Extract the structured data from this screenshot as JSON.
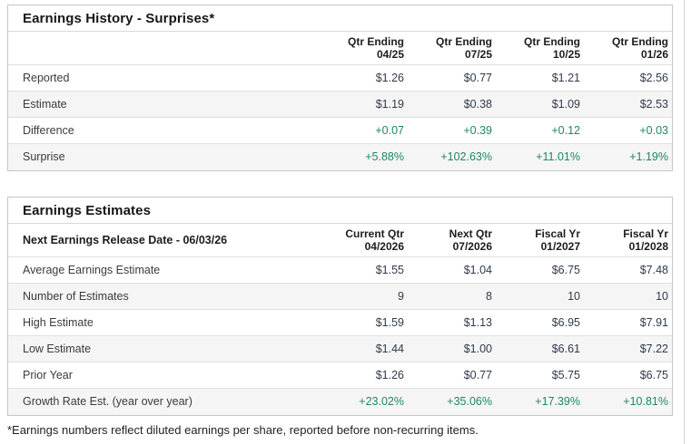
{
  "colors": {
    "positive_value_color": "#1d8767"
  },
  "surprises": {
    "title": "Earnings History - Surprises*",
    "columns": [
      {
        "line1": "Qtr Ending",
        "line2": "04/25"
      },
      {
        "line1": "Qtr Ending",
        "line2": "07/25"
      },
      {
        "line1": "Qtr Ending",
        "line2": "10/25"
      },
      {
        "line1": "Qtr Ending",
        "line2": "01/26"
      }
    ],
    "rows": [
      {
        "label": "Reported",
        "values": [
          "$1.26",
          "$0.77",
          "$1.21",
          "$2.56"
        ]
      },
      {
        "label": "Estimate",
        "values": [
          "$1.19",
          "$0.38",
          "$1.09",
          "$2.53"
        ]
      },
      {
        "label": "Difference",
        "values": [
          "+0.07",
          "+0.39",
          "+0.12",
          "+0.03"
        ]
      },
      {
        "label": "Surprise",
        "values": [
          "+5.88%",
          "+102.63%",
          "+11.01%",
          "+1.19%"
        ]
      }
    ]
  },
  "estimates": {
    "title": "Earnings Estimates",
    "corner_label": "Next Earnings Release Date - 06/03/26",
    "columns": [
      {
        "line1": "Current Qtr",
        "line2": "04/2026"
      },
      {
        "line1": "Next Qtr",
        "line2": "07/2026"
      },
      {
        "line1": "Fiscal Yr",
        "line2": "01/2027"
      },
      {
        "line1": "Fiscal Yr",
        "line2": "01/2028"
      }
    ],
    "rows": [
      {
        "label": "Average Earnings Estimate",
        "values": [
          "$1.55",
          "$1.04",
          "$6.75",
          "$7.48"
        ]
      },
      {
        "label": "Number of Estimates",
        "values": [
          "9",
          "8",
          "10",
          "10"
        ]
      },
      {
        "label": "High Estimate",
        "values": [
          "$1.59",
          "$1.13",
          "$6.95",
          "$7.91"
        ]
      },
      {
        "label": "Low Estimate",
        "values": [
          "$1.44",
          "$1.00",
          "$6.61",
          "$7.22"
        ]
      },
      {
        "label": "Prior Year",
        "values": [
          "$1.26",
          "$0.77",
          "$5.75",
          "$6.75"
        ]
      },
      {
        "label": "Growth Rate Est. (year over year)",
        "values": [
          "+23.02%",
          "+35.06%",
          "+17.39%",
          "+10.81%"
        ]
      }
    ]
  },
  "footnote": "*Earnings numbers reflect diluted earnings per share, reported before non-recurring items."
}
